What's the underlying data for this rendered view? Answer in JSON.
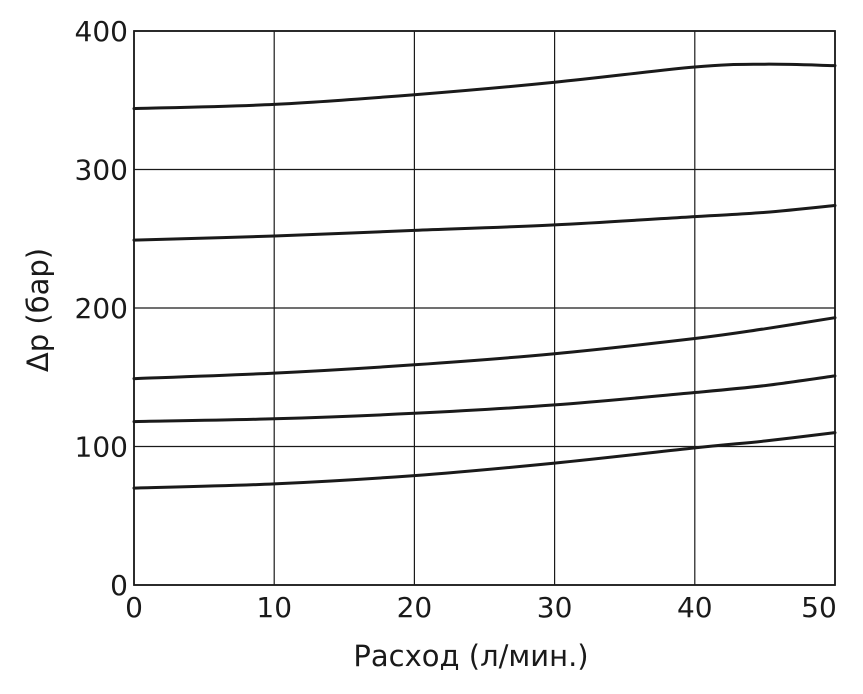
{
  "chart_data": {
    "type": "line",
    "xlabel": "Расход (л/мин.)",
    "ylabel": "Δp (бар)",
    "xlim": [
      0,
      50
    ],
    "ylim": [
      0,
      400
    ],
    "xticks": [
      "0",
      "10",
      "20",
      "30",
      "40",
      "50"
    ],
    "yticks": [
      "0",
      "100",
      "200",
      "300",
      "400"
    ],
    "grid": true,
    "x": [
      0,
      10,
      20,
      30,
      40,
      45,
      50
    ],
    "series": [
      {
        "values": [
          344,
          347,
          354,
          363,
          374,
          376,
          375
        ]
      },
      {
        "values": [
          249,
          252,
          256,
          260,
          266,
          269,
          274
        ]
      },
      {
        "values": [
          149,
          153,
          159,
          167,
          178,
          185,
          193
        ]
      },
      {
        "values": [
          118,
          120,
          124,
          130,
          139,
          144,
          151
        ]
      },
      {
        "values": [
          70,
          73,
          79,
          88,
          99,
          104,
          110
        ]
      }
    ]
  }
}
